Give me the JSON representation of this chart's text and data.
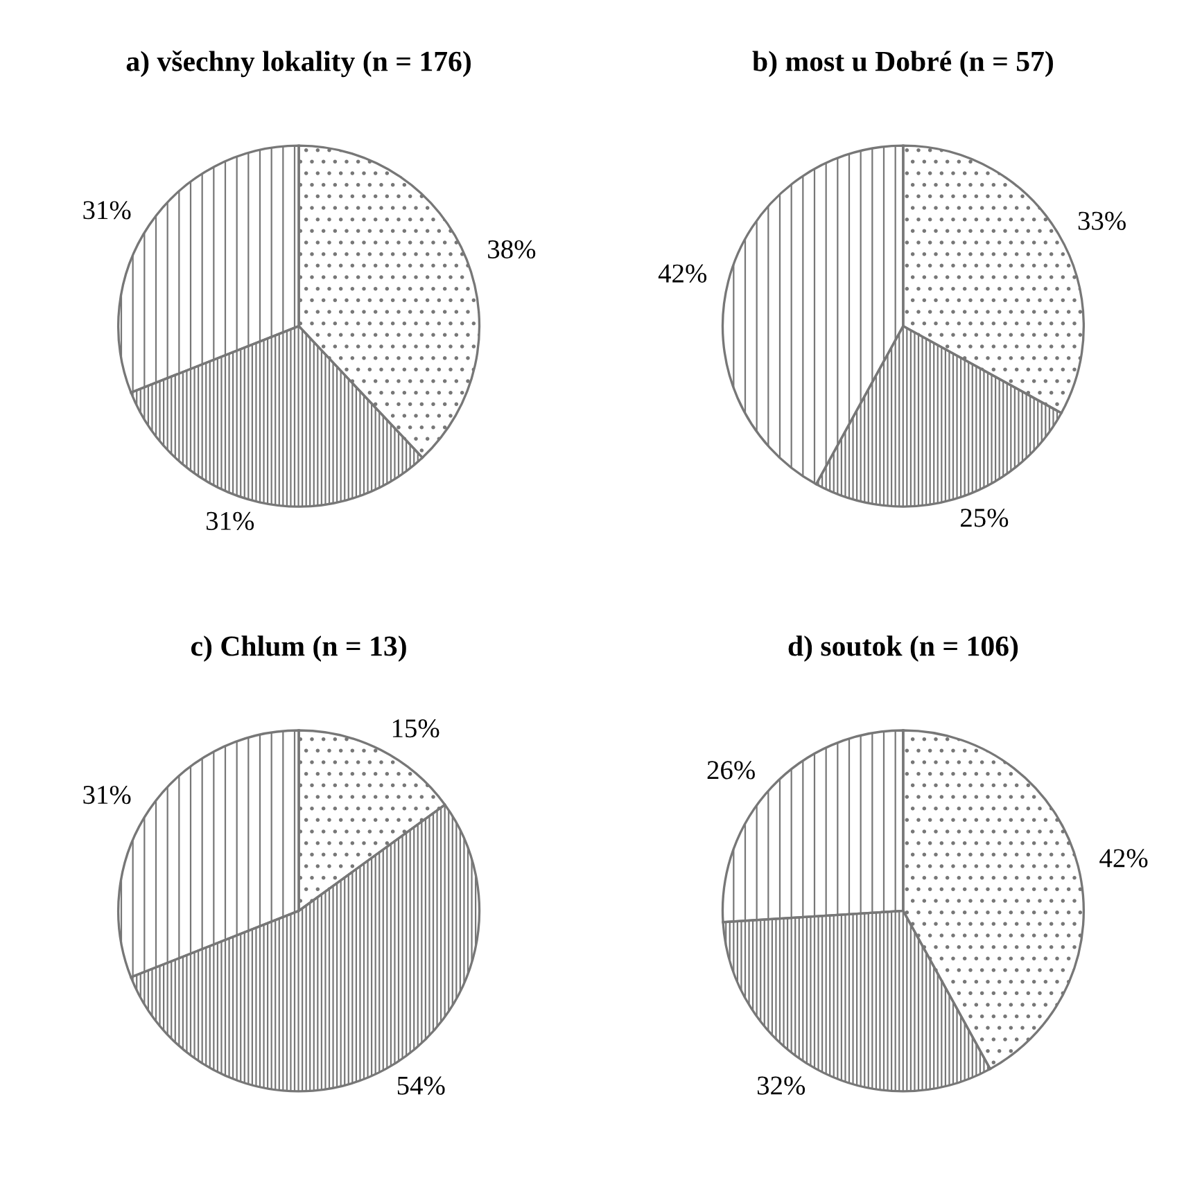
{
  "chart_data": [
    {
      "type": "pie",
      "title": "a) všechny lokality (n = 176)",
      "categories": [
        null,
        null,
        null
      ],
      "values": [
        38,
        31,
        31
      ],
      "value_labels": [
        "38%",
        "31%",
        "31%"
      ],
      "colors": [
        "#ffffff",
        "#ffffff",
        "#ffffff"
      ]
    },
    {
      "type": "pie",
      "title": "b) most u Dobré (n = 57)",
      "categories": [
        null,
        null,
        null
      ],
      "values": [
        33,
        25,
        42
      ],
      "value_labels": [
        "33%",
        "25%",
        "42%"
      ],
      "colors": [
        "#ffffff",
        "#ffffff",
        "#ffffff"
      ]
    },
    {
      "type": "pie",
      "title": "c) Chlum (n = 13)",
      "categories": [
        null,
        null,
        null
      ],
      "values": [
        15,
        54,
        31
      ],
      "value_labels": [
        "15%",
        "54%",
        "31%"
      ],
      "colors": [
        "#ffffff",
        "#ffffff",
        "#ffffff"
      ]
    },
    {
      "type": "pie",
      "title": "d) soutok (n = 106)",
      "categories": [
        null,
        null,
        null
      ],
      "values": [
        42,
        32,
        26
      ],
      "value_labels": [
        "42%",
        "32%",
        "26%"
      ],
      "colors": [
        "#ffffff",
        "#ffffff",
        "#ffffff"
      ]
    }
  ]
}
